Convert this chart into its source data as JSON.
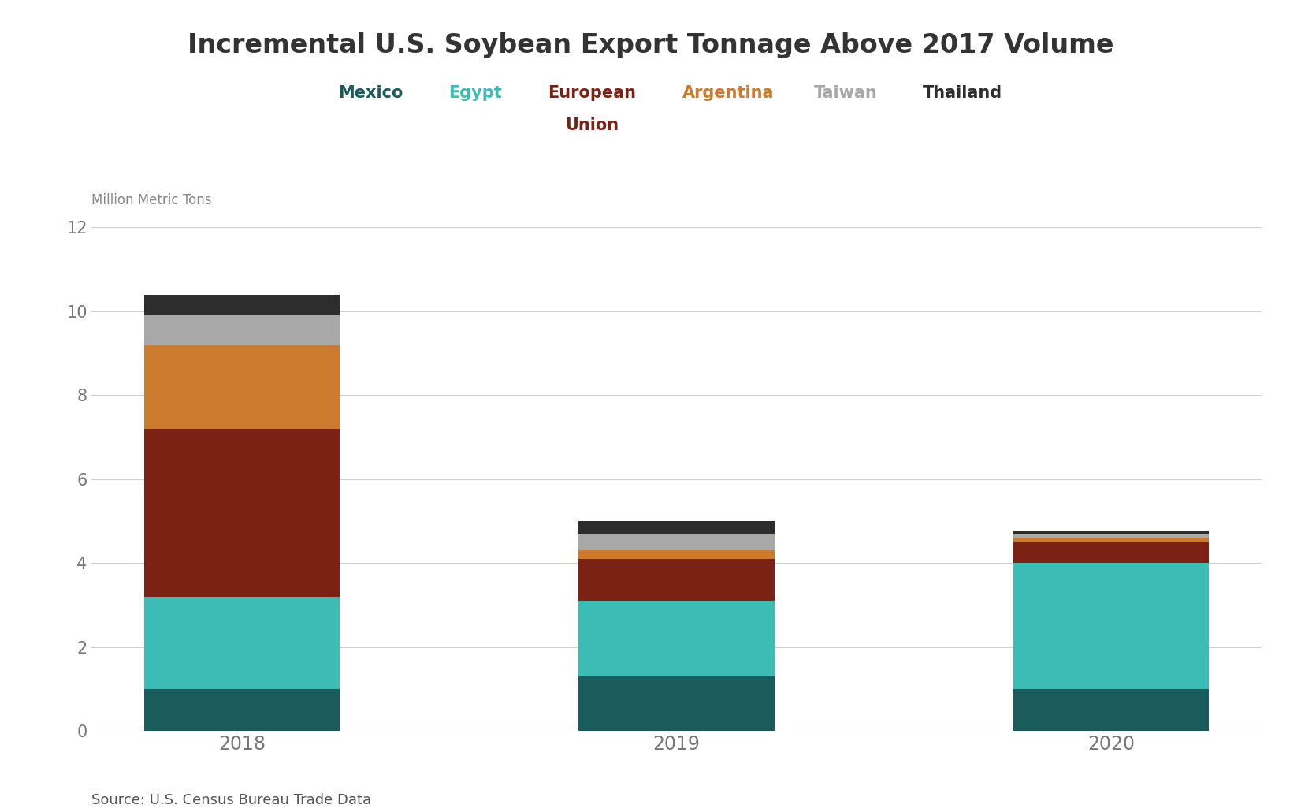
{
  "title": "Incremental U.S. Soybean Export Tonnage Above 2017 Volume",
  "ylabel": "Million Metric Tons",
  "source": "Source: U.S. Census Bureau Trade Data",
  "years": [
    "2018",
    "2019",
    "2020"
  ],
  "categories": [
    "Mexico",
    "Egypt",
    "European\nUnion",
    "Argentina",
    "Taiwan",
    "Thailand"
  ],
  "colors": [
    "#1a5c5c",
    "#3cbcb4",
    "#7b2214",
    "#cc7a2e",
    "#a8a8a8",
    "#2d2d2d"
  ],
  "legend_text_colors": [
    "#1a5c5c",
    "#3cbcb4",
    "#7b2214",
    "#cc7a2e",
    "#a8a8a8",
    "#2d2d2d"
  ],
  "data": {
    "Mexico": [
      1.0,
      1.3,
      1.0
    ],
    "Egypt": [
      2.2,
      1.8,
      3.0
    ],
    "European\nUnion": [
      4.0,
      1.0,
      0.5
    ],
    "Argentina": [
      2.0,
      0.2,
      0.1
    ],
    "Taiwan": [
      0.7,
      0.4,
      0.1
    ],
    "Thailand": [
      0.5,
      0.3,
      0.05
    ]
  },
  "ylim": [
    0,
    12
  ],
  "yticks": [
    0,
    2,
    4,
    6,
    8,
    10,
    12
  ],
  "bar_width": 0.45,
  "background_color": "#ffffff",
  "grid_color": "#d0d0d0",
  "title_fontsize": 24,
  "axis_label_fontsize": 12,
  "tick_fontsize": 15,
  "legend_fontsize": 15,
  "source_fontsize": 13
}
